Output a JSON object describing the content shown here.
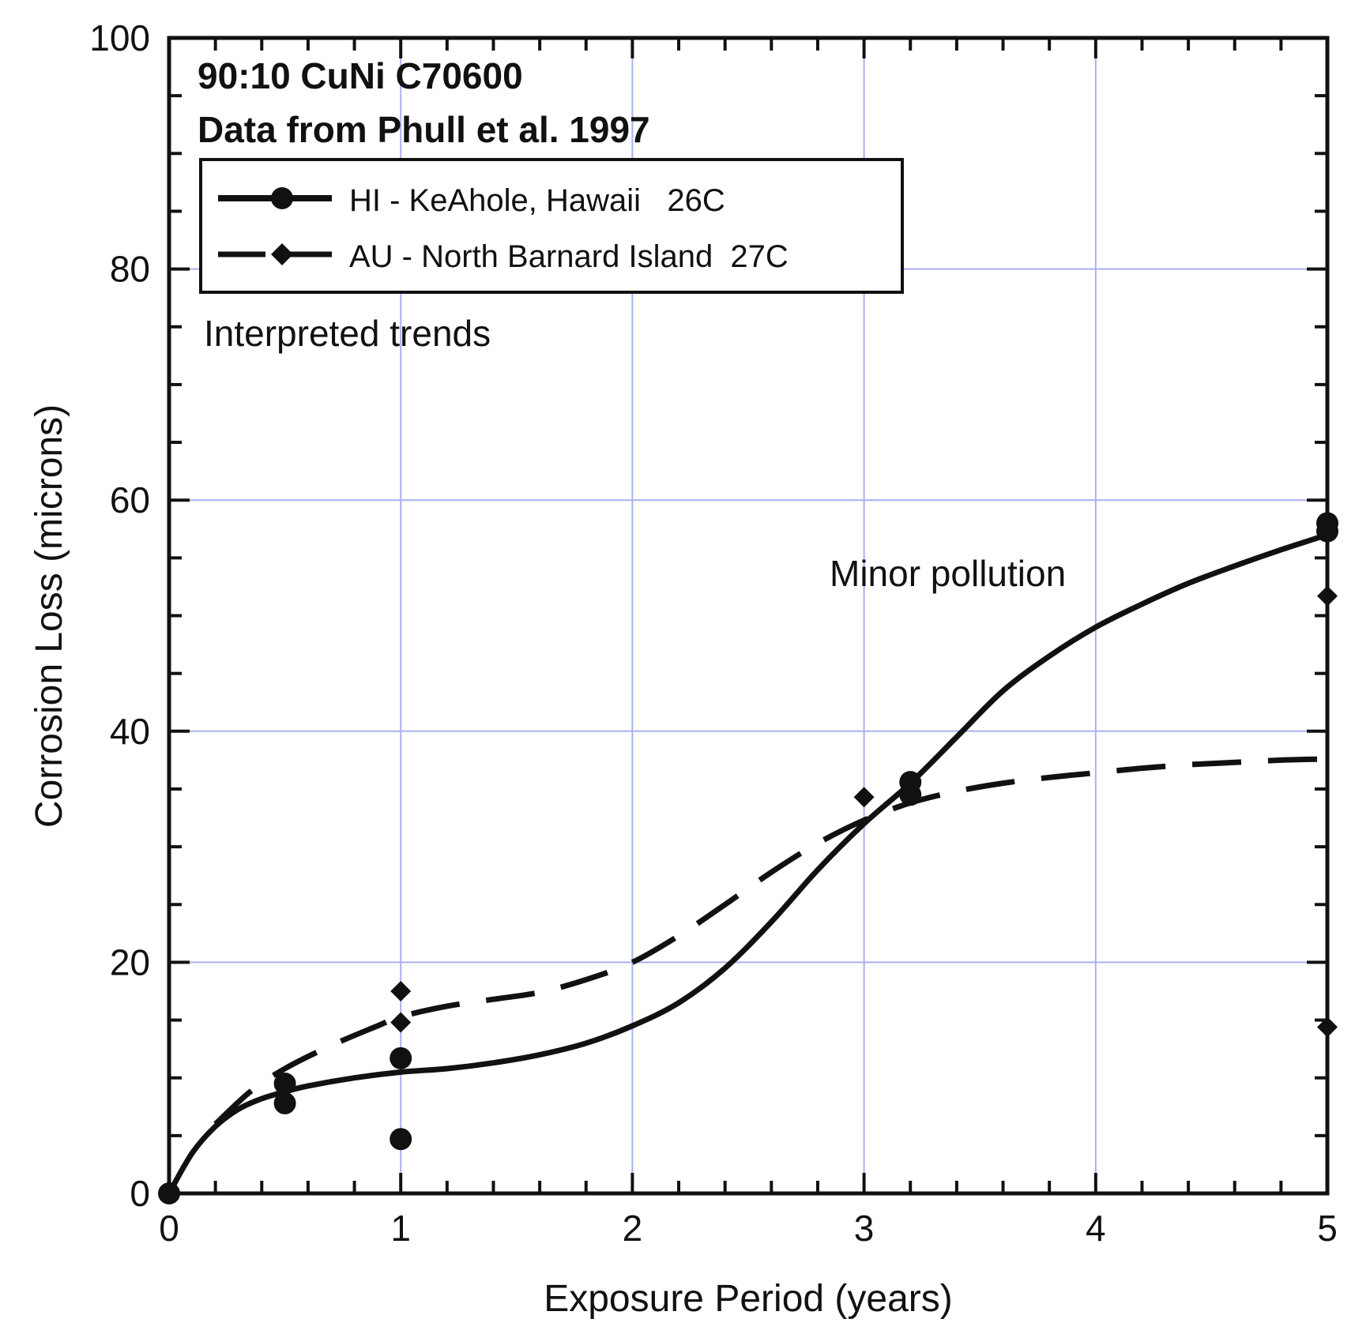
{
  "chart_data": {
    "type": "scatter",
    "title": "90:10 CuNi C70600",
    "subtitle": "Data from Phull et al. 1997",
    "xlabel": "Exposure Period (years)",
    "ylabel": "Corrosion Loss (microns)",
    "xlim": [
      0,
      5
    ],
    "ylim": [
      0,
      100
    ],
    "x_ticks": [
      "0",
      "1",
      "2",
      "3",
      "4",
      "5"
    ],
    "y_ticks": [
      "0",
      "20",
      "40",
      "60",
      "80",
      "100"
    ],
    "grid": true,
    "legend_position": "top-left",
    "annotations": [
      "Interpreted trends",
      "Minor pollution"
    ],
    "series": [
      {
        "name": "HI - KeAhole, Hawaii   26C",
        "marker": "circle",
        "line_style": "solid",
        "points": [
          [
            0,
            0
          ],
          [
            0.5,
            7.8
          ],
          [
            0.5,
            9.5
          ],
          [
            1,
            4.7
          ],
          [
            1,
            11.7
          ],
          [
            3.2,
            34.5
          ],
          [
            3.2,
            35.6
          ],
          [
            5,
            57.3
          ],
          [
            5,
            58.0
          ]
        ],
        "trend": [
          [
            0,
            0
          ],
          [
            0.1,
            3.5
          ],
          [
            0.2,
            5.8
          ],
          [
            0.3,
            7.3
          ],
          [
            0.4,
            8.2
          ],
          [
            0.5,
            8.8
          ],
          [
            0.6,
            9.3
          ],
          [
            0.8,
            10.0
          ],
          [
            1.0,
            10.5
          ],
          [
            1.2,
            10.8
          ],
          [
            1.4,
            11.3
          ],
          [
            1.6,
            12.0
          ],
          [
            1.8,
            13.0
          ],
          [
            2.0,
            14.5
          ],
          [
            2.2,
            16.5
          ],
          [
            2.4,
            19.5
          ],
          [
            2.6,
            23.5
          ],
          [
            2.8,
            28.0
          ],
          [
            3.0,
            32.0
          ],
          [
            3.2,
            35.5
          ],
          [
            3.4,
            39.5
          ],
          [
            3.6,
            43.5
          ],
          [
            3.8,
            46.5
          ],
          [
            4.0,
            49.0
          ],
          [
            4.2,
            51.0
          ],
          [
            4.4,
            52.8
          ],
          [
            4.6,
            54.3
          ],
          [
            4.8,
            55.7
          ],
          [
            5.0,
            57.0
          ]
        ]
      },
      {
        "name": "AU - North Barnard Island  27C",
        "marker": "diamond",
        "line_style": "dashed",
        "points": [
          [
            1,
            14.8
          ],
          [
            1,
            17.5
          ],
          [
            3,
            34.3
          ],
          [
            5,
            14.4
          ],
          [
            5,
            51.7
          ]
        ],
        "trend": [
          [
            0.2,
            6.0
          ],
          [
            0.35,
            8.8
          ],
          [
            0.5,
            10.8
          ],
          [
            0.7,
            12.8
          ],
          [
            0.9,
            14.5
          ],
          [
            1.0,
            15.3
          ],
          [
            1.2,
            16.2
          ],
          [
            1.4,
            16.8
          ],
          [
            1.6,
            17.4
          ],
          [
            1.8,
            18.5
          ],
          [
            2.0,
            20.0
          ],
          [
            2.2,
            22.3
          ],
          [
            2.4,
            25.0
          ],
          [
            2.6,
            27.8
          ],
          [
            2.8,
            30.3
          ],
          [
            3.0,
            32.3
          ],
          [
            3.2,
            33.8
          ],
          [
            3.4,
            34.8
          ],
          [
            3.6,
            35.5
          ],
          [
            3.8,
            36.0
          ],
          [
            4.0,
            36.4
          ],
          [
            4.2,
            36.8
          ],
          [
            4.4,
            37.1
          ],
          [
            4.6,
            37.3
          ],
          [
            4.8,
            37.5
          ],
          [
            5.0,
            37.6
          ]
        ]
      }
    ]
  }
}
